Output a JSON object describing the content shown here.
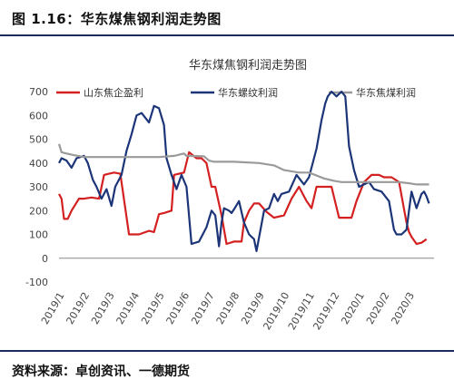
{
  "figure": {
    "title": "图 1.16：华东煤焦钢利润走势图",
    "source": "资料来源：卓创资讯、一德期货"
  },
  "chart_data": {
    "type": "line",
    "title": "华东煤焦钢利润走势图",
    "xlabel": "",
    "ylabel": "",
    "ylim": [
      -100,
      700
    ],
    "yticks": [
      -100,
      0,
      100,
      200,
      300,
      400,
      500,
      600,
      700
    ],
    "xlim": [
      0,
      15.0
    ],
    "categories": [
      "2019/1",
      "2019/2",
      "2019/3",
      "2019/4",
      "2019/5",
      "2019/6",
      "2019/7",
      "2019/8",
      "2019/9",
      "2019/10",
      "2019/11",
      "2019/12",
      "2020/1",
      "2020/2",
      "2020/3"
    ],
    "grid": false,
    "legend_position": "top",
    "series": [
      {
        "name": "山东焦企盈利",
        "color": "#d42020",
        "x": [
          0.0,
          0.1,
          0.2,
          0.35,
          0.5,
          0.8,
          1.0,
          1.3,
          1.6,
          1.8,
          2.0,
          2.2,
          2.45,
          2.8,
          3.2,
          3.6,
          3.8,
          4.0,
          4.2,
          4.5,
          4.6,
          4.8,
          5.0,
          5.2,
          5.5,
          5.7,
          5.9,
          6.1,
          6.25,
          6.5,
          6.7,
          7.0,
          7.3,
          7.4,
          7.6,
          7.8,
          8.0,
          8.3,
          8.6,
          9.0,
          9.3,
          9.6,
          9.9,
          10.1,
          10.3,
          10.6,
          10.9,
          11.2,
          11.5,
          11.7,
          11.9,
          12.2,
          12.5,
          12.8,
          13.0,
          13.3,
          13.6,
          13.9,
          14.0,
          14.1,
          14.3,
          14.5,
          14.7
        ],
        "values": [
          270,
          250,
          165,
          165,
          200,
          250,
          250,
          255,
          250,
          350,
          355,
          360,
          355,
          100,
          100,
          115,
          110,
          185,
          190,
          200,
          350,
          355,
          360,
          445,
          420,
          420,
          400,
          300,
          300,
          180,
          60,
          70,
          70,
          150,
          200,
          230,
          230,
          195,
          170,
          180,
          250,
          300,
          240,
          210,
          300,
          300,
          300,
          170,
          170,
          170,
          240,
          320,
          350,
          350,
          340,
          340,
          320,
          150,
          110,
          90,
          60,
          65,
          80
        ]
      },
      {
        "name": "华东螺纹利润",
        "color": "#1c3578",
        "x": [
          0.0,
          0.1,
          0.3,
          0.5,
          0.7,
          1.0,
          1.15,
          1.35,
          1.5,
          1.7,
          1.9,
          2.1,
          2.25,
          2.5,
          2.7,
          2.9,
          3.1,
          3.3,
          3.6,
          3.8,
          4.0,
          4.2,
          4.3,
          4.5,
          4.7,
          4.9,
          5.1,
          5.3,
          5.6,
          5.9,
          6.1,
          6.25,
          6.4,
          6.5,
          6.6,
          6.8,
          6.9,
          7.0,
          7.2,
          7.4,
          7.6,
          7.8,
          7.9,
          8.2,
          8.4,
          8.6,
          8.75,
          8.9,
          9.2,
          9.5,
          9.8,
          10.0,
          10.3,
          10.5,
          10.65,
          10.75,
          10.9,
          11.1,
          11.3,
          11.45,
          11.6,
          11.8,
          12.0,
          12.2,
          12.4,
          12.6,
          12.9,
          13.2,
          13.4,
          13.5,
          13.7,
          13.9,
          14.1,
          14.3,
          14.5,
          14.6,
          14.7,
          14.8
        ],
        "values": [
          400,
          420,
          410,
          380,
          420,
          430,
          400,
          330,
          300,
          250,
          290,
          220,
          300,
          350,
          450,
          520,
          600,
          610,
          570,
          640,
          630,
          560,
          420,
          350,
          290,
          350,
          300,
          60,
          70,
          130,
          200,
          180,
          50,
          150,
          210,
          200,
          190,
          205,
          240,
          150,
          100,
          80,
          30,
          200,
          210,
          270,
          240,
          270,
          280,
          350,
          310,
          340,
          460,
          580,
          650,
          680,
          700,
          680,
          700,
          680,
          470,
          370,
          300,
          310,
          320,
          290,
          280,
          240,
          120,
          100,
          100,
          120,
          280,
          210,
          270,
          280,
          260,
          230
        ]
      },
      {
        "name": "华东焦煤利润",
        "color": "#9a9a9a",
        "x": [
          0.0,
          0.1,
          0.3,
          0.5,
          1.0,
          2.0,
          3.0,
          4.0,
          4.6,
          5.0,
          5.1,
          5.8,
          6.0,
          6.2,
          7.0,
          8.0,
          8.6,
          9.0,
          9.6,
          10.0,
          10.6,
          11.0,
          11.3,
          11.6,
          12.0,
          12.6,
          13.0,
          13.6,
          14.0,
          14.3,
          14.8
        ],
        "values": [
          480,
          445,
          440,
          435,
          425,
          425,
          425,
          425,
          430,
          440,
          430,
          428,
          410,
          405,
          405,
          400,
          390,
          370,
          360,
          360,
          335,
          325,
          320,
          320,
          320,
          320,
          320,
          320,
          315,
          310,
          310
        ]
      }
    ]
  }
}
